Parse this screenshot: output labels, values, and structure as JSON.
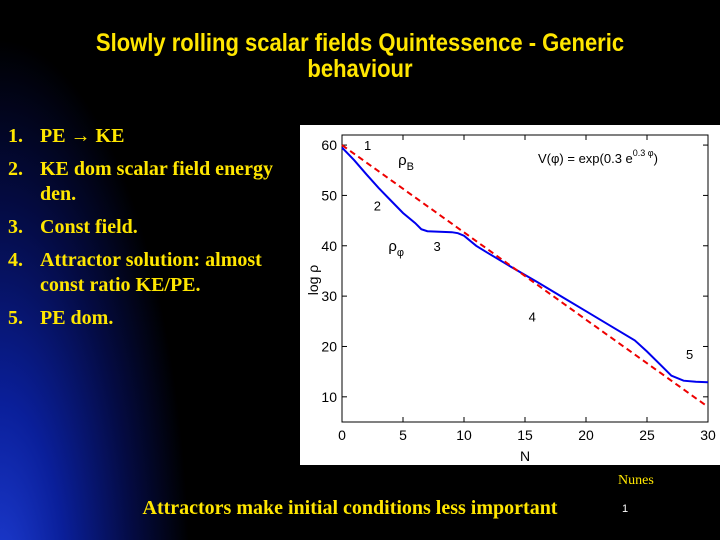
{
  "slide": {
    "title_line1": "Slowly rolling scalar fields Quintessence - Generic",
    "title_line2": "behaviour",
    "items": [
      {
        "num": "1.",
        "text": "PE → KE"
      },
      {
        "num": "2.",
        "text": "KE dom scalar field energy den."
      },
      {
        "num": "3.",
        "text": "Const field."
      },
      {
        "num": "4.",
        "text": "Attractor solution: almost const ratio KE/PE."
      },
      {
        "num": "5.",
        "text": "PE dom."
      }
    ],
    "credit": "Nunes",
    "footer": "Attractors make initial conditions less important",
    "page_number": "1"
  },
  "chart_data": {
    "type": "line",
    "xlabel": "N",
    "ylabel": "log ρ",
    "xlim": [
      0,
      30
    ],
    "ylim": [
      5,
      62
    ],
    "xticks": [
      0,
      5,
      10,
      15,
      20,
      25,
      30
    ],
    "yticks": [
      10,
      20,
      30,
      40,
      50,
      60
    ],
    "grid": false,
    "formula": "V(φ) = exp(0.3 e^{0.3 φ})",
    "series": [
      {
        "name": "ρφ",
        "color": "#0000ee",
        "style": "solid",
        "x": [
          0,
          1,
          2,
          3,
          4,
          5,
          6,
          6.5,
          7,
          8,
          9,
          9.5,
          10,
          11,
          12,
          14,
          16,
          18,
          20,
          22,
          24,
          25,
          26,
          27,
          28,
          29,
          30
        ],
        "y": [
          59.5,
          57,
          54.2,
          51.5,
          49,
          46.5,
          44.5,
          43.3,
          42.9,
          42.8,
          42.7,
          42.5,
          42,
          40,
          38.5,
          35.6,
          32.8,
          29.9,
          27,
          24.1,
          21.2,
          19,
          16.6,
          14.2,
          13.2,
          13.0,
          12.9
        ]
      },
      {
        "name": "ρB",
        "color": "#ee0000",
        "style": "dashed",
        "x": [
          0,
          30
        ],
        "y": [
          60,
          8
        ]
      }
    ],
    "annotations": [
      {
        "text": "1",
        "x": 1.8,
        "y": 59
      },
      {
        "text": "2",
        "x": 2.6,
        "y": 47
      },
      {
        "text": "3",
        "x": 7.5,
        "y": 39
      },
      {
        "text": "4",
        "x": 15.3,
        "y": 25
      },
      {
        "text": "5",
        "x": 28.2,
        "y": 17.5
      }
    ],
    "curve_labels": [
      {
        "main": "ρ",
        "sub": "B",
        "x": 4.6,
        "y": 56
      },
      {
        "main": "ρ",
        "sub": "φ",
        "x": 3.8,
        "y": 39
      }
    ]
  }
}
